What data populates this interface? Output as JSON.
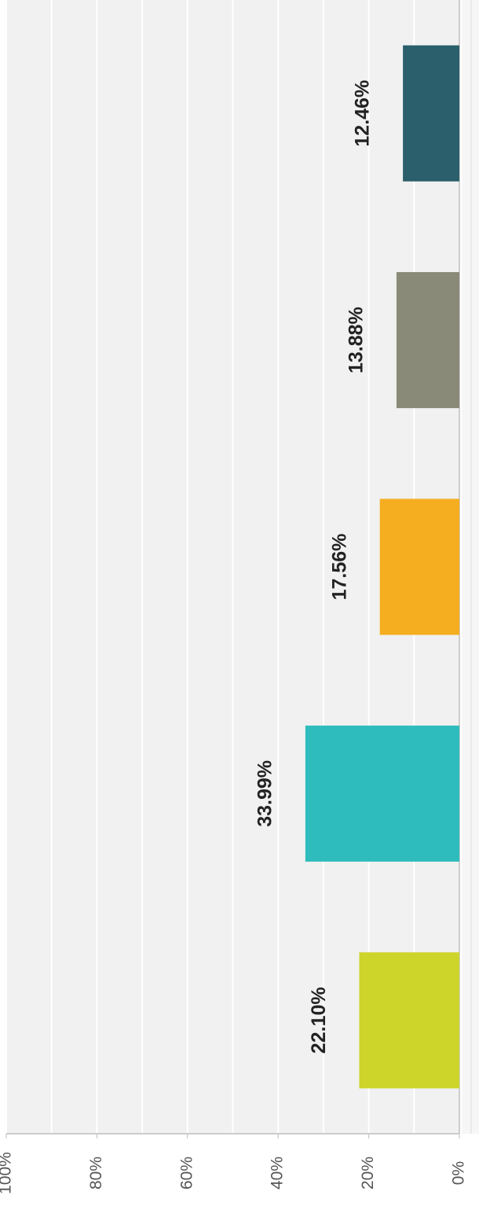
{
  "chart_data": {
    "type": "bar",
    "orientation": "rotated",
    "categories": [
      null,
      null,
      null,
      null,
      null
    ],
    "values": [
      22.1,
      33.99,
      17.56,
      13.88,
      12.46
    ],
    "value_labels": [
      "22.10%",
      "33.99%",
      "17.56%",
      "13.88%",
      "12.46%"
    ],
    "colors": [
      "#cdd42a",
      "#2fbcbd",
      "#f5ae20",
      "#8a8a78",
      "#2a5f6b"
    ],
    "ylim": [
      0,
      100
    ],
    "yticks": [
      {
        "value": 0,
        "label": "0%"
      },
      {
        "value": 20,
        "label": "20%"
      },
      {
        "value": 40,
        "label": "40%"
      },
      {
        "value": 60,
        "label": "60%"
      },
      {
        "value": 80,
        "label": "80%"
      },
      {
        "value": 100,
        "label": "100%"
      }
    ],
    "minor_yticks": [
      10,
      30,
      50,
      70,
      90
    ],
    "grid": true
  }
}
